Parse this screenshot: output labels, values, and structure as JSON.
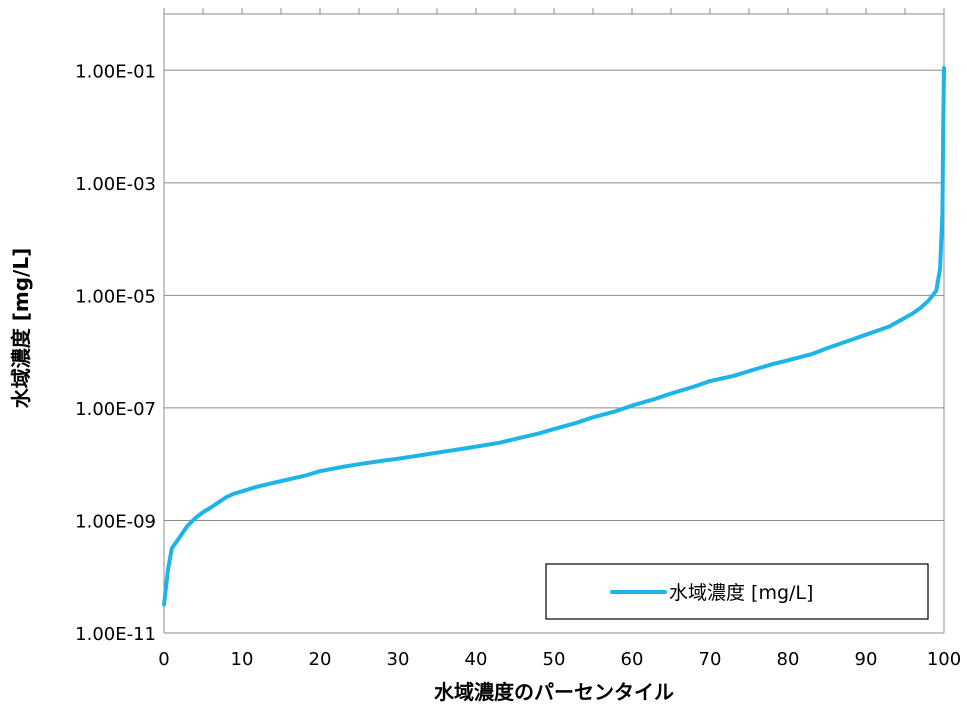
{
  "chart_data": {
    "type": "line",
    "title": "",
    "xlabel": "水域濃度のパーセンタイル",
    "ylabel": "水域濃度 [mg/L]",
    "xlim": [
      0,
      100
    ],
    "ylim": [
      1e-11,
      1
    ],
    "yscale": "log",
    "x_ticks": [
      "0",
      "10",
      "20",
      "30",
      "40",
      "50",
      "60",
      "70",
      "80",
      "90",
      "100"
    ],
    "y_ticks": [
      "1.00E-11",
      "1.00E-09",
      "1.00E-07",
      "1.00E-05",
      "1.00E-03",
      "1.00E-01"
    ],
    "grid": "horizontal",
    "legend_position": "bottom-right",
    "series": [
      {
        "name": "水域濃度 [mg/L]",
        "color": "#1fb4e8",
        "x": [
          0,
          0.5,
          1,
          2,
          3,
          4,
          5,
          6,
          7,
          8,
          9,
          10,
          12,
          15,
          18,
          20,
          23,
          25,
          28,
          30,
          33,
          35,
          38,
          40,
          43,
          45,
          48,
          50,
          53,
          55,
          58,
          60,
          63,
          65,
          68,
          70,
          73,
          75,
          78,
          80,
          83,
          85,
          88,
          90,
          93,
          95,
          96,
          97,
          98,
          99,
          99.5,
          99.8,
          99.9,
          100
        ],
        "y": [
          3.2e-11,
          1.3e-10,
          3.2e-10,
          5e-10,
          8e-10,
          1.1e-09,
          1.4e-09,
          1.7e-09,
          2.1e-09,
          2.6e-09,
          3e-09,
          3.3e-09,
          4e-09,
          5e-09,
          6.2e-09,
          7.5e-09,
          9e-09,
          1e-08,
          1.15e-08,
          1.25e-08,
          1.45e-08,
          1.6e-08,
          1.85e-08,
          2.05e-08,
          2.4e-08,
          2.8e-08,
          3.5e-08,
          4.2e-08,
          5.5e-08,
          6.8e-08,
          8.8e-08,
          1.1e-07,
          1.45e-07,
          1.8e-07,
          2.4e-07,
          3e-07,
          3.7e-07,
          4.5e-07,
          6e-07,
          7e-07,
          9e-07,
          1.15e-06,
          1.6e-06,
          2e-06,
          2.8e-06,
          4e-06,
          4.8e-06,
          6e-06,
          8e-06,
          1.2e-05,
          3e-05,
          0.0003,
          0.01,
          0.11
        ]
      }
    ]
  }
}
